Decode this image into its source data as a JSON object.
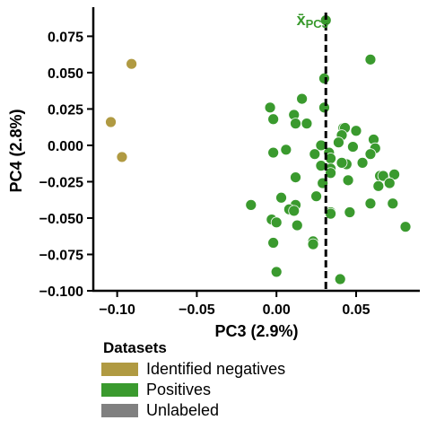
{
  "chart_data": {
    "type": "scatter",
    "xlabel": "PC3 (2.9%)",
    "ylabel": "PC4 (2.8%)",
    "xlim": [
      -0.115,
      0.09
    ],
    "ylim": [
      -0.1,
      0.095
    ],
    "xticks": [
      -0.1,
      -0.05,
      0.0,
      0.05
    ],
    "xtick_labels": [
      "−0.10",
      "−0.05",
      "0.00",
      "0.05"
    ],
    "yticks": [
      0.075,
      0.05,
      0.025,
      0.0,
      -0.025,
      -0.05,
      -0.075,
      -0.1
    ],
    "ytick_labels": [
      "0.075",
      "0.050",
      "0.025",
      "0.000",
      "−0.025",
      "−0.050",
      "−0.075",
      "−0.100"
    ],
    "grid": false,
    "legend": {
      "title": "Datasets",
      "placement": "below",
      "entries": [
        {
          "label": "Identified negatives",
          "color": "#b09a42"
        },
        {
          "label": "Positives",
          "color": "#3a9a2e"
        },
        {
          "label": "Unlabeled",
          "color": "#808080"
        }
      ]
    },
    "vline": {
      "x": 0.031,
      "label": "x̄_PC3",
      "label_main": "x̄",
      "label_sub": "PC3",
      "color": "#3a9a2e"
    },
    "series": [
      {
        "name": "Identified negatives",
        "color": "#b09a42",
        "points": [
          [
            -0.091,
            0.056
          ],
          [
            -0.104,
            0.016
          ],
          [
            -0.097,
            -0.008
          ]
        ]
      },
      {
        "name": "Positives",
        "color": "#3a9a2e",
        "points": [
          [
            0.031,
            0.086
          ],
          [
            0.059,
            0.059
          ],
          [
            0.03,
            0.046
          ],
          [
            0.016,
            0.032
          ],
          [
            -0.004,
            0.026
          ],
          [
            0.03,
            0.026
          ],
          [
            -0.002,
            0.018
          ],
          [
            0.011,
            0.021
          ],
          [
            0.012,
            0.015
          ],
          [
            0.019,
            0.015
          ],
          [
            0.042,
            0.012
          ],
          [
            0.043,
            0.012
          ],
          [
            0.05,
            0.01
          ],
          [
            0.041,
            0.007
          ],
          [
            0.028,
            0.0
          ],
          [
            0.039,
            0.002
          ],
          [
            0.061,
            0.004
          ],
          [
            0.062,
            -0.002
          ],
          [
            0.006,
            -0.003
          ],
          [
            -0.002,
            -0.005
          ],
          [
            0.033,
            -0.005
          ],
          [
            0.048,
            -0.001
          ],
          [
            0.024,
            -0.006
          ],
          [
            0.059,
            -0.006
          ],
          [
            0.034,
            -0.009
          ],
          [
            0.044,
            -0.013
          ],
          [
            0.041,
            -0.012
          ],
          [
            0.054,
            -0.012
          ],
          [
            0.028,
            -0.014
          ],
          [
            0.034,
            -0.016
          ],
          [
            0.034,
            -0.019
          ],
          [
            0.065,
            -0.021
          ],
          [
            0.067,
            -0.021
          ],
          [
            0.074,
            -0.02
          ],
          [
            0.012,
            -0.022
          ],
          [
            0.045,
            -0.024
          ],
          [
            0.029,
            -0.026
          ],
          [
            0.071,
            -0.026
          ],
          [
            0.064,
            -0.028
          ],
          [
            0.003,
            -0.036
          ],
          [
            0.025,
            -0.035
          ],
          [
            -0.016,
            -0.041
          ],
          [
            0.012,
            -0.041
          ],
          [
            0.008,
            -0.044
          ],
          [
            0.011,
            -0.045
          ],
          [
            0.034,
            -0.046
          ],
          [
            0.034,
            -0.047
          ],
          [
            0.046,
            -0.046
          ],
          [
            0.059,
            -0.04
          ],
          [
            0.073,
            -0.04
          ],
          [
            -0.003,
            -0.051
          ],
          [
            0.0,
            -0.053
          ],
          [
            0.013,
            -0.055
          ],
          [
            -0.002,
            -0.067
          ],
          [
            0.023,
            -0.066
          ],
          [
            0.023,
            -0.068
          ],
          [
            0.081,
            -0.056
          ],
          [
            0.0,
            -0.087
          ],
          [
            0.04,
            -0.092
          ]
        ]
      }
    ]
  }
}
